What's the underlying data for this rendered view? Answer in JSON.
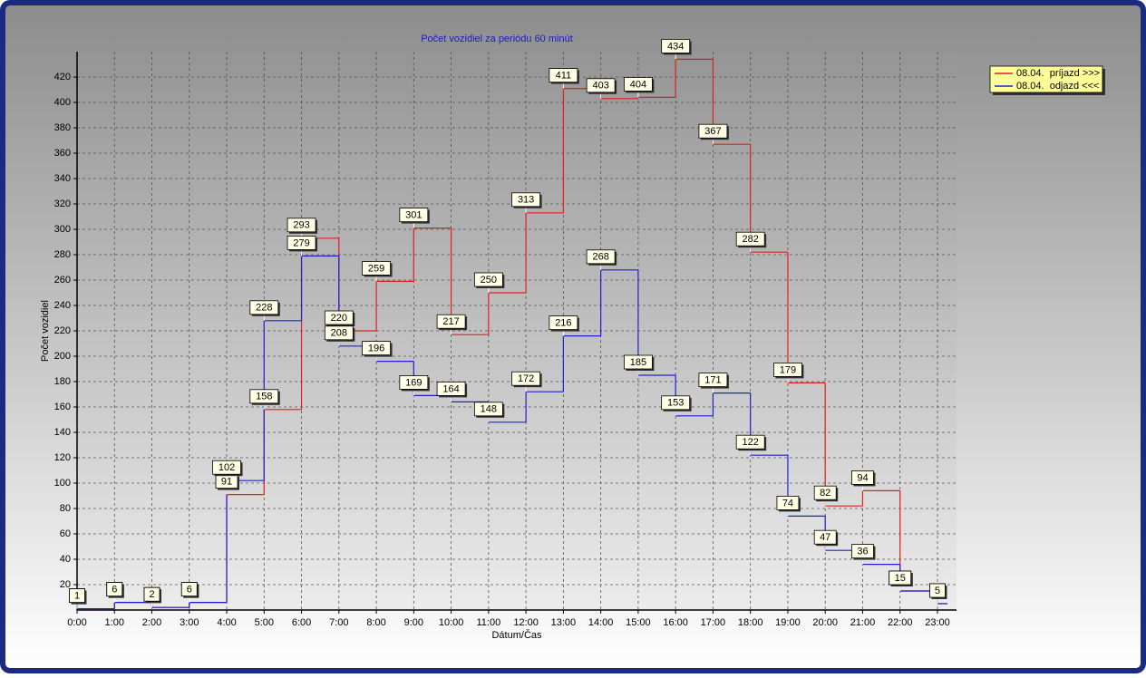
{
  "chart_data": {
    "type": "step",
    "title": "Počet vozidiel za periódu 60 minút",
    "x_label": "Dátum/Čas",
    "y_label": "Počet vozidiel",
    "categories": [
      "0:00",
      "1:00",
      "2:00",
      "3:00",
      "4:00",
      "5:00",
      "6:00",
      "7:00",
      "8:00",
      "9:00",
      "10:00",
      "11:00",
      "12:00",
      "13:00",
      "14:00",
      "15:00",
      "16:00",
      "17:00",
      "18:00",
      "19:00",
      "20:00",
      "21:00",
      "22:00",
      "23:00"
    ],
    "series": [
      {
        "name": "08.04.  príjazd >>>",
        "color": "#e02020",
        "values": [
          1,
          6,
          2,
          6,
          91,
          158,
          293,
          220,
          259,
          301,
          217,
          250,
          313,
          411,
          403,
          404,
          434,
          367,
          282,
          179,
          82,
          94,
          15,
          5
        ]
      },
      {
        "name": "08.04.  odjazd <<<",
        "color": "#2020d0",
        "values": [
          1,
          6,
          2,
          6,
          102,
          228,
          279,
          208,
          196,
          169,
          164,
          148,
          172,
          216,
          268,
          185,
          153,
          171,
          122,
          74,
          47,
          36,
          15,
          5
        ]
      }
    ],
    "ylim": [
      0,
      440
    ],
    "yticks": [
      20,
      40,
      60,
      80,
      100,
      120,
      140,
      160,
      180,
      200,
      220,
      240,
      260,
      280,
      300,
      320,
      340,
      360,
      380,
      400,
      420
    ],
    "grid": true,
    "legend": "right"
  }
}
